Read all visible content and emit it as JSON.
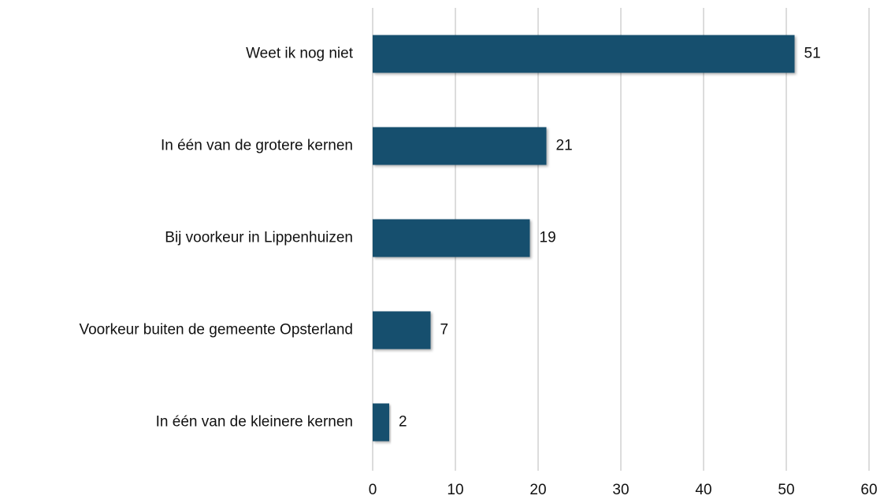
{
  "chart_data": {
    "type": "bar",
    "categories": [
      "Weet ik nog niet",
      "In één van de grotere kernen",
      "Bij voorkeur in Lippenhuizen",
      "Voorkeur buiten de gemeente Opsterland",
      "In één van de kleinere kernen"
    ],
    "values": [
      51,
      21,
      19,
      7,
      2
    ],
    "color": "#12506e",
    "xlim": [
      0,
      60
    ],
    "xticks": [
      0,
      10,
      20,
      30,
      40,
      50,
      60
    ],
    "grid": true
  }
}
